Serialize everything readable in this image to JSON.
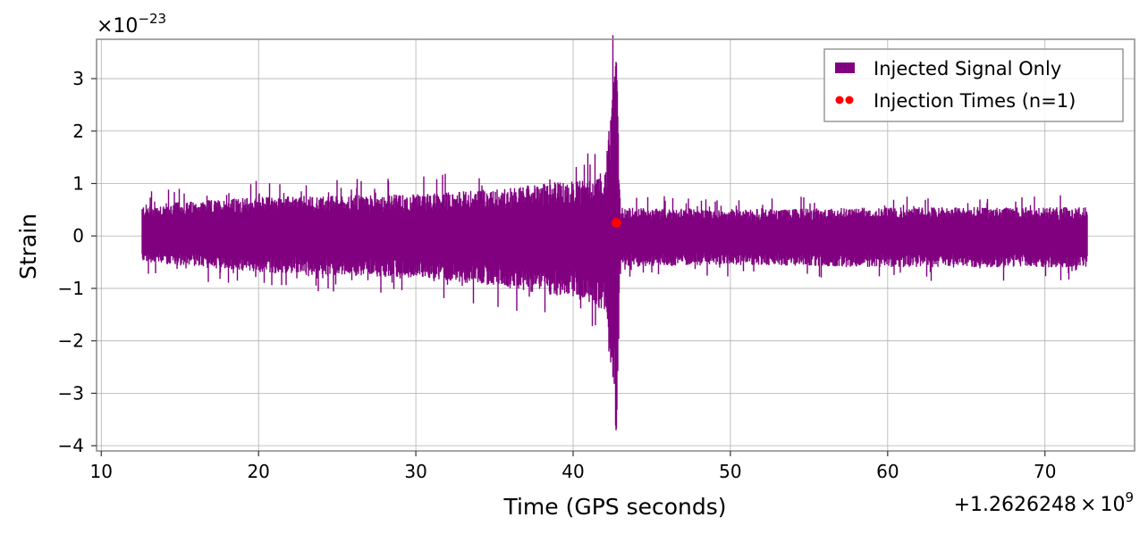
{
  "chart_data": {
    "type": "line",
    "xlabel": "Time (GPS seconds)",
    "ylabel": "Strain",
    "x_offset_label": "+1.2626248",
    "x_offset_times": "×",
    "x_offset_base": "10",
    "x_offset_exp": "9",
    "y_scale_prefix": "×10",
    "y_scale_exp": "−23",
    "xlim": [
      9.7,
      75.7
    ],
    "ylim": [
      -4.1,
      3.75
    ],
    "x_ticks": [
      10,
      20,
      30,
      40,
      50,
      60,
      70
    ],
    "x_tick_labels": [
      "10",
      "20",
      "30",
      "40",
      "50",
      "60",
      "70"
    ],
    "y_ticks": [
      -4,
      -3,
      -2,
      -1,
      0,
      1,
      2,
      3
    ],
    "y_tick_labels": [
      "−4",
      "−3",
      "−2",
      "−1",
      "0",
      "1",
      "2",
      "3"
    ],
    "grid": true,
    "legend_position": "top-right",
    "series": [
      {
        "name": "Injected Signal Only",
        "color": "#800080",
        "style": "line",
        "x_range": [
          12.6,
          72.7
        ],
        "envelope": [
          {
            "x": 12.6,
            "upper": 0.6,
            "lower": -0.5
          },
          {
            "x": 20.0,
            "upper": 0.75,
            "lower": -0.7
          },
          {
            "x": 30.0,
            "upper": 0.8,
            "lower": -0.8
          },
          {
            "x": 35.0,
            "upper": 0.9,
            "lower": -0.95
          },
          {
            "x": 40.0,
            "upper": 1.05,
            "lower": -1.2
          },
          {
            "x": 42.0,
            "upper": 1.2,
            "lower": -1.4
          },
          {
            "x": 42.75,
            "upper": 3.38,
            "lower": -3.77
          },
          {
            "x": 43.0,
            "upper": 0.55,
            "lower": -0.6
          },
          {
            "x": 50.0,
            "upper": 0.5,
            "lower": -0.55
          },
          {
            "x": 60.0,
            "upper": 0.55,
            "lower": -0.6
          },
          {
            "x": 72.7,
            "upper": 0.55,
            "lower": -0.6
          }
        ]
      },
      {
        "name": "Injection Times (n=1)",
        "color": "#ff0000",
        "style": "scatter",
        "points": [
          {
            "x": 42.75,
            "y": 0.25
          }
        ]
      }
    ]
  }
}
